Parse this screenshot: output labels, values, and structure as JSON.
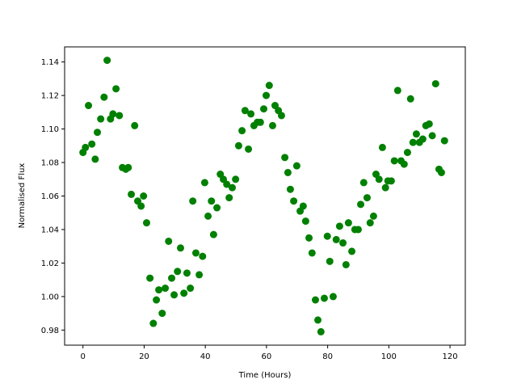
{
  "chart_data": {
    "type": "scatter",
    "title": "",
    "xlabel": "Time (Hours)",
    "ylabel": "Normalised Flux",
    "xlim": [
      -6,
      125
    ],
    "ylim": [
      0.971,
      1.149
    ],
    "xticks": [
      "0",
      "20",
      "40",
      "60",
      "80",
      "100",
      "120"
    ],
    "yticks": [
      "0.98",
      "1.00",
      "1.02",
      "1.04",
      "1.06",
      "1.08",
      "1.10",
      "1.12",
      "1.14"
    ],
    "grid": false,
    "marker_color": "#008000",
    "series": [
      {
        "x": [
          0,
          0.8,
          1.8,
          2.9,
          4.0,
          4.7,
          5.8,
          6.9,
          7.9,
          9.0,
          9.8,
          10.8,
          11.9,
          12.9,
          14.0,
          14.8,
          15.8,
          16.9,
          17.9,
          19.0,
          19.8,
          20.8,
          21.9,
          23.0,
          24.0,
          24.8,
          25.9,
          26.9,
          28.0,
          29.0,
          29.8,
          30.9,
          31.9,
          33.0,
          34.0,
          35.1,
          35.9,
          36.9,
          38.0,
          39.1,
          39.8,
          40.9,
          42.0,
          42.7,
          43.8,
          44.9,
          45.9,
          47.0,
          47.8,
          48.8,
          49.9,
          50.9,
          52.0,
          53.0,
          54.1,
          54.9,
          55.9,
          57.0,
          58.0,
          59.1,
          59.9,
          60.9,
          62.0,
          62.8,
          63.9,
          64.9,
          66.0,
          67.0,
          67.8,
          68.9,
          69.9,
          71.0,
          72.0,
          72.8,
          73.9,
          74.9,
          76.0,
          76.8,
          77.8,
          78.9,
          79.9,
          80.7,
          81.8,
          82.8,
          83.9,
          85.0,
          86.0,
          86.8,
          87.9,
          88.9,
          90.0,
          90.8,
          91.8,
          92.9,
          93.9,
          95.0,
          95.8,
          96.8,
          97.9,
          98.9,
          99.7,
          100.8,
          101.8,
          102.9,
          104.0,
          105.0,
          106.1,
          107.1,
          107.9,
          109.0,
          110.0,
          111.1,
          112.1,
          113.2,
          114.2,
          115.3,
          116.4,
          117.2,
          118.2
        ],
        "y": [
          1.086,
          1.089,
          1.114,
          1.091,
          1.082,
          1.098,
          1.106,
          1.119,
          1.141,
          1.106,
          1.109,
          1.124,
          1.108,
          1.077,
          1.076,
          1.077,
          1.061,
          1.102,
          1.057,
          1.054,
          1.06,
          1.044,
          1.011,
          0.984,
          0.998,
          1.004,
          0.99,
          1.005,
          1.033,
          1.011,
          1.001,
          1.015,
          1.029,
          1.002,
          1.014,
          1.005,
          1.057,
          1.026,
          1.013,
          1.024,
          1.068,
          1.048,
          1.057,
          1.037,
          1.053,
          1.073,
          1.07,
          1.067,
          1.059,
          1.065,
          1.07,
          1.09,
          1.099,
          1.111,
          1.088,
          1.109,
          1.102,
          1.104,
          1.104,
          1.112,
          1.12,
          1.126,
          1.102,
          1.114,
          1.111,
          1.108,
          1.083,
          1.074,
          1.064,
          1.057,
          1.078,
          1.051,
          1.054,
          1.045,
          1.035,
          1.026,
          0.998,
          0.986,
          0.979,
          0.999,
          1.036,
          1.021,
          1.0,
          1.034,
          1.042,
          1.032,
          1.019,
          1.044,
          1.027,
          1.04,
          1.04,
          1.055,
          1.068,
          1.059,
          1.044,
          1.048,
          1.073,
          1.07,
          1.089,
          1.065,
          1.069,
          1.069,
          1.081,
          1.123,
          1.081,
          1.079,
          1.086,
          1.118,
          1.092,
          1.097,
          1.092,
          1.094,
          1.102,
          1.103,
          1.096,
          1.127,
          1.076,
          1.074,
          1.093
        ]
      }
    ]
  }
}
